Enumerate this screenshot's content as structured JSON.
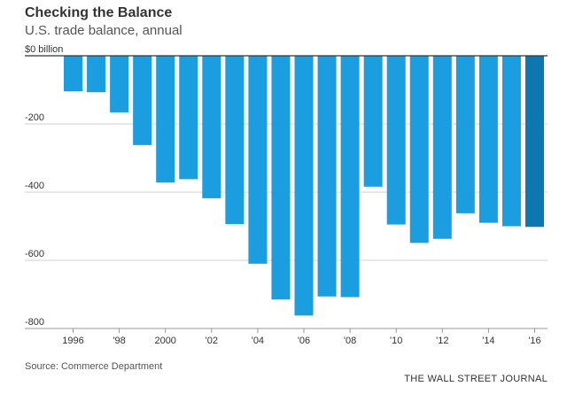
{
  "title": "Checking the Balance",
  "subtitle": "U.S. trade balance, annual",
  "source": "Source: Commerce Department",
  "publisher": "THE WALL STREET JOURNAL",
  "colors": {
    "bar": "#1a9ee0",
    "bar_highlight": "#0d78b0",
    "grid": "#d0d0d0",
    "baseline": "#333333"
  },
  "chart_data": {
    "type": "bar",
    "title": "Checking the Balance",
    "subtitle": "U.S. trade balance, annual",
    "xlabel": "",
    "ylabel": "",
    "unit": "billion",
    "categories": [
      "1996",
      "1997",
      "1998",
      "1999",
      "2000",
      "2001",
      "2002",
      "2003",
      "2004",
      "2005",
      "2006",
      "2007",
      "2008",
      "2009",
      "2010",
      "2011",
      "2012",
      "2013",
      "2014",
      "2015",
      "2016"
    ],
    "values": [
      -104,
      -107,
      -166,
      -262,
      -372,
      -362,
      -418,
      -494,
      -610,
      -715,
      -762,
      -706,
      -708,
      -384,
      -495,
      -549,
      -537,
      -462,
      -490,
      -500,
      -502
    ],
    "highlight_index": 20,
    "ylim": [
      -800,
      0
    ],
    "yticks": [
      {
        "value": 0,
        "label": "$0 billion"
      },
      {
        "value": -200,
        "label": "-200"
      },
      {
        "value": -400,
        "label": "-400"
      },
      {
        "value": -600,
        "label": "-600"
      },
      {
        "value": -800,
        "label": "-800"
      }
    ],
    "xticks": [
      {
        "index": 0,
        "label": "1996"
      },
      {
        "index": 2,
        "label": "'98"
      },
      {
        "index": 4,
        "label": "2000"
      },
      {
        "index": 6,
        "label": "'02"
      },
      {
        "index": 8,
        "label": "'04"
      },
      {
        "index": 10,
        "label": "'06"
      },
      {
        "index": 12,
        "label": "'08"
      },
      {
        "index": 14,
        "label": "'10"
      },
      {
        "index": 16,
        "label": "'12"
      },
      {
        "index": 18,
        "label": "'14"
      },
      {
        "index": 20,
        "label": "'16"
      }
    ],
    "grid": true
  }
}
